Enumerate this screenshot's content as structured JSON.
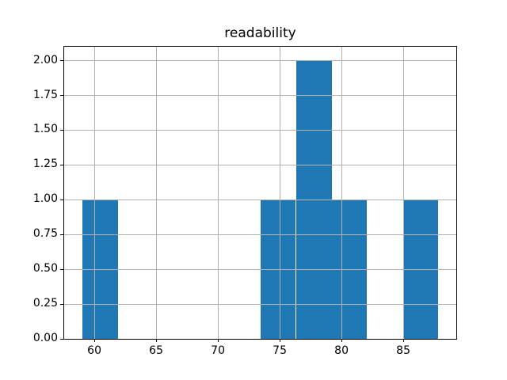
{
  "figure": {
    "background": "#ffffff"
  },
  "chart_data": {
    "type": "bar",
    "subtype": "histogram",
    "title": "readability",
    "xlabel": "",
    "ylabel": "",
    "bin_edges": [
      59.0,
      61.89,
      64.77,
      67.66,
      70.54,
      73.43,
      76.31,
      79.2,
      82.08,
      84.97,
      87.85
    ],
    "counts": [
      1,
      0,
      0,
      0,
      0,
      1,
      2,
      1,
      0,
      1
    ],
    "xticks": [
      60,
      65,
      70,
      75,
      80,
      85
    ],
    "xtick_labels": [
      "60",
      "65",
      "70",
      "75",
      "80",
      "85"
    ],
    "yticks": [
      0.0,
      0.25,
      0.5,
      0.75,
      1.0,
      1.25,
      1.5,
      1.75,
      2.0
    ],
    "ytick_labels": [
      "0.00",
      "0.25",
      "0.50",
      "0.75",
      "1.00",
      "1.25",
      "1.50",
      "1.75",
      "2.00"
    ],
    "xlim": [
      57.56,
      89.29
    ],
    "ylim": [
      0,
      2.1
    ],
    "grid": true,
    "grid_above_bars": true,
    "legend": null,
    "colors": {
      "bar": "#1f77b4",
      "grid": "#b0b0b0",
      "spine": "#000000",
      "text": "#000000"
    }
  }
}
